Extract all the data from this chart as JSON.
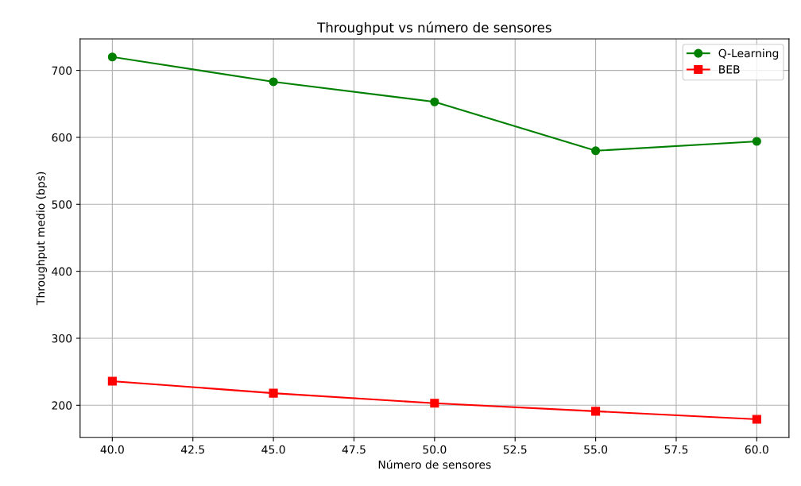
{
  "chart_data": {
    "type": "line",
    "title": "Throughput vs número de sensores",
    "xlabel": "Número de sensores",
    "ylabel": "Throughput medio (bps)",
    "x": [
      40,
      45,
      50,
      55,
      60
    ],
    "series": [
      {
        "name": "Q-Learning",
        "color": "#008000",
        "marker": "circle",
        "values": [
          720,
          683,
          653,
          580,
          594
        ]
      },
      {
        "name": "BEB",
        "color": "#ff0000",
        "marker": "square",
        "values": [
          236,
          218,
          203,
          191,
          179
        ]
      }
    ],
    "xlim": [
      39,
      61
    ],
    "ylim": [
      152,
      747
    ],
    "xticks": [
      {
        "value": 40,
        "label": "40.0"
      },
      {
        "value": 42.5,
        "label": "42.5"
      },
      {
        "value": 45,
        "label": "45.0"
      },
      {
        "value": 47.5,
        "label": "47.5"
      },
      {
        "value": 50,
        "label": "50.0"
      },
      {
        "value": 52.5,
        "label": "52.5"
      },
      {
        "value": 55,
        "label": "55.0"
      },
      {
        "value": 57.5,
        "label": "57.5"
      },
      {
        "value": 60,
        "label": "60.0"
      }
    ],
    "yticks": [
      200,
      300,
      400,
      500,
      600,
      700
    ],
    "grid": true,
    "legend": "top right",
    "line_style": "solid"
  }
}
